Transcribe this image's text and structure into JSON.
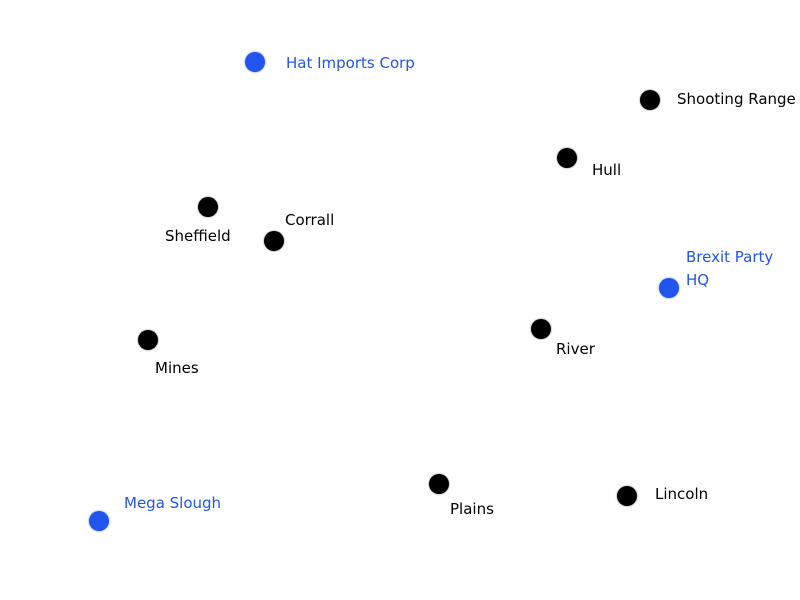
{
  "colors": {
    "town": "#000000",
    "special": "#2255ee",
    "background": "#ffffff"
  },
  "locations": {
    "hat_imports_corp": {
      "label": "Hat Imports Corp",
      "kind": "special"
    },
    "shooting_range": {
      "label": "Shooting Range",
      "kind": "town"
    },
    "hull": {
      "label": "Hull",
      "kind": "town"
    },
    "sheffield": {
      "label": "Sheffield",
      "kind": "town"
    },
    "corrall": {
      "label": "Corrall",
      "kind": "town"
    },
    "brexit_party_hq": {
      "label": "Brexit Party HQ",
      "kind": "special"
    },
    "river": {
      "label": "River",
      "kind": "town"
    },
    "mines": {
      "label": "Mines",
      "kind": "town"
    },
    "plains": {
      "label": "Plains",
      "kind": "town"
    },
    "lincoln": {
      "label": "Lincoln",
      "kind": "town"
    },
    "mega_slough": {
      "label": "Mega Slough",
      "kind": "special"
    }
  }
}
